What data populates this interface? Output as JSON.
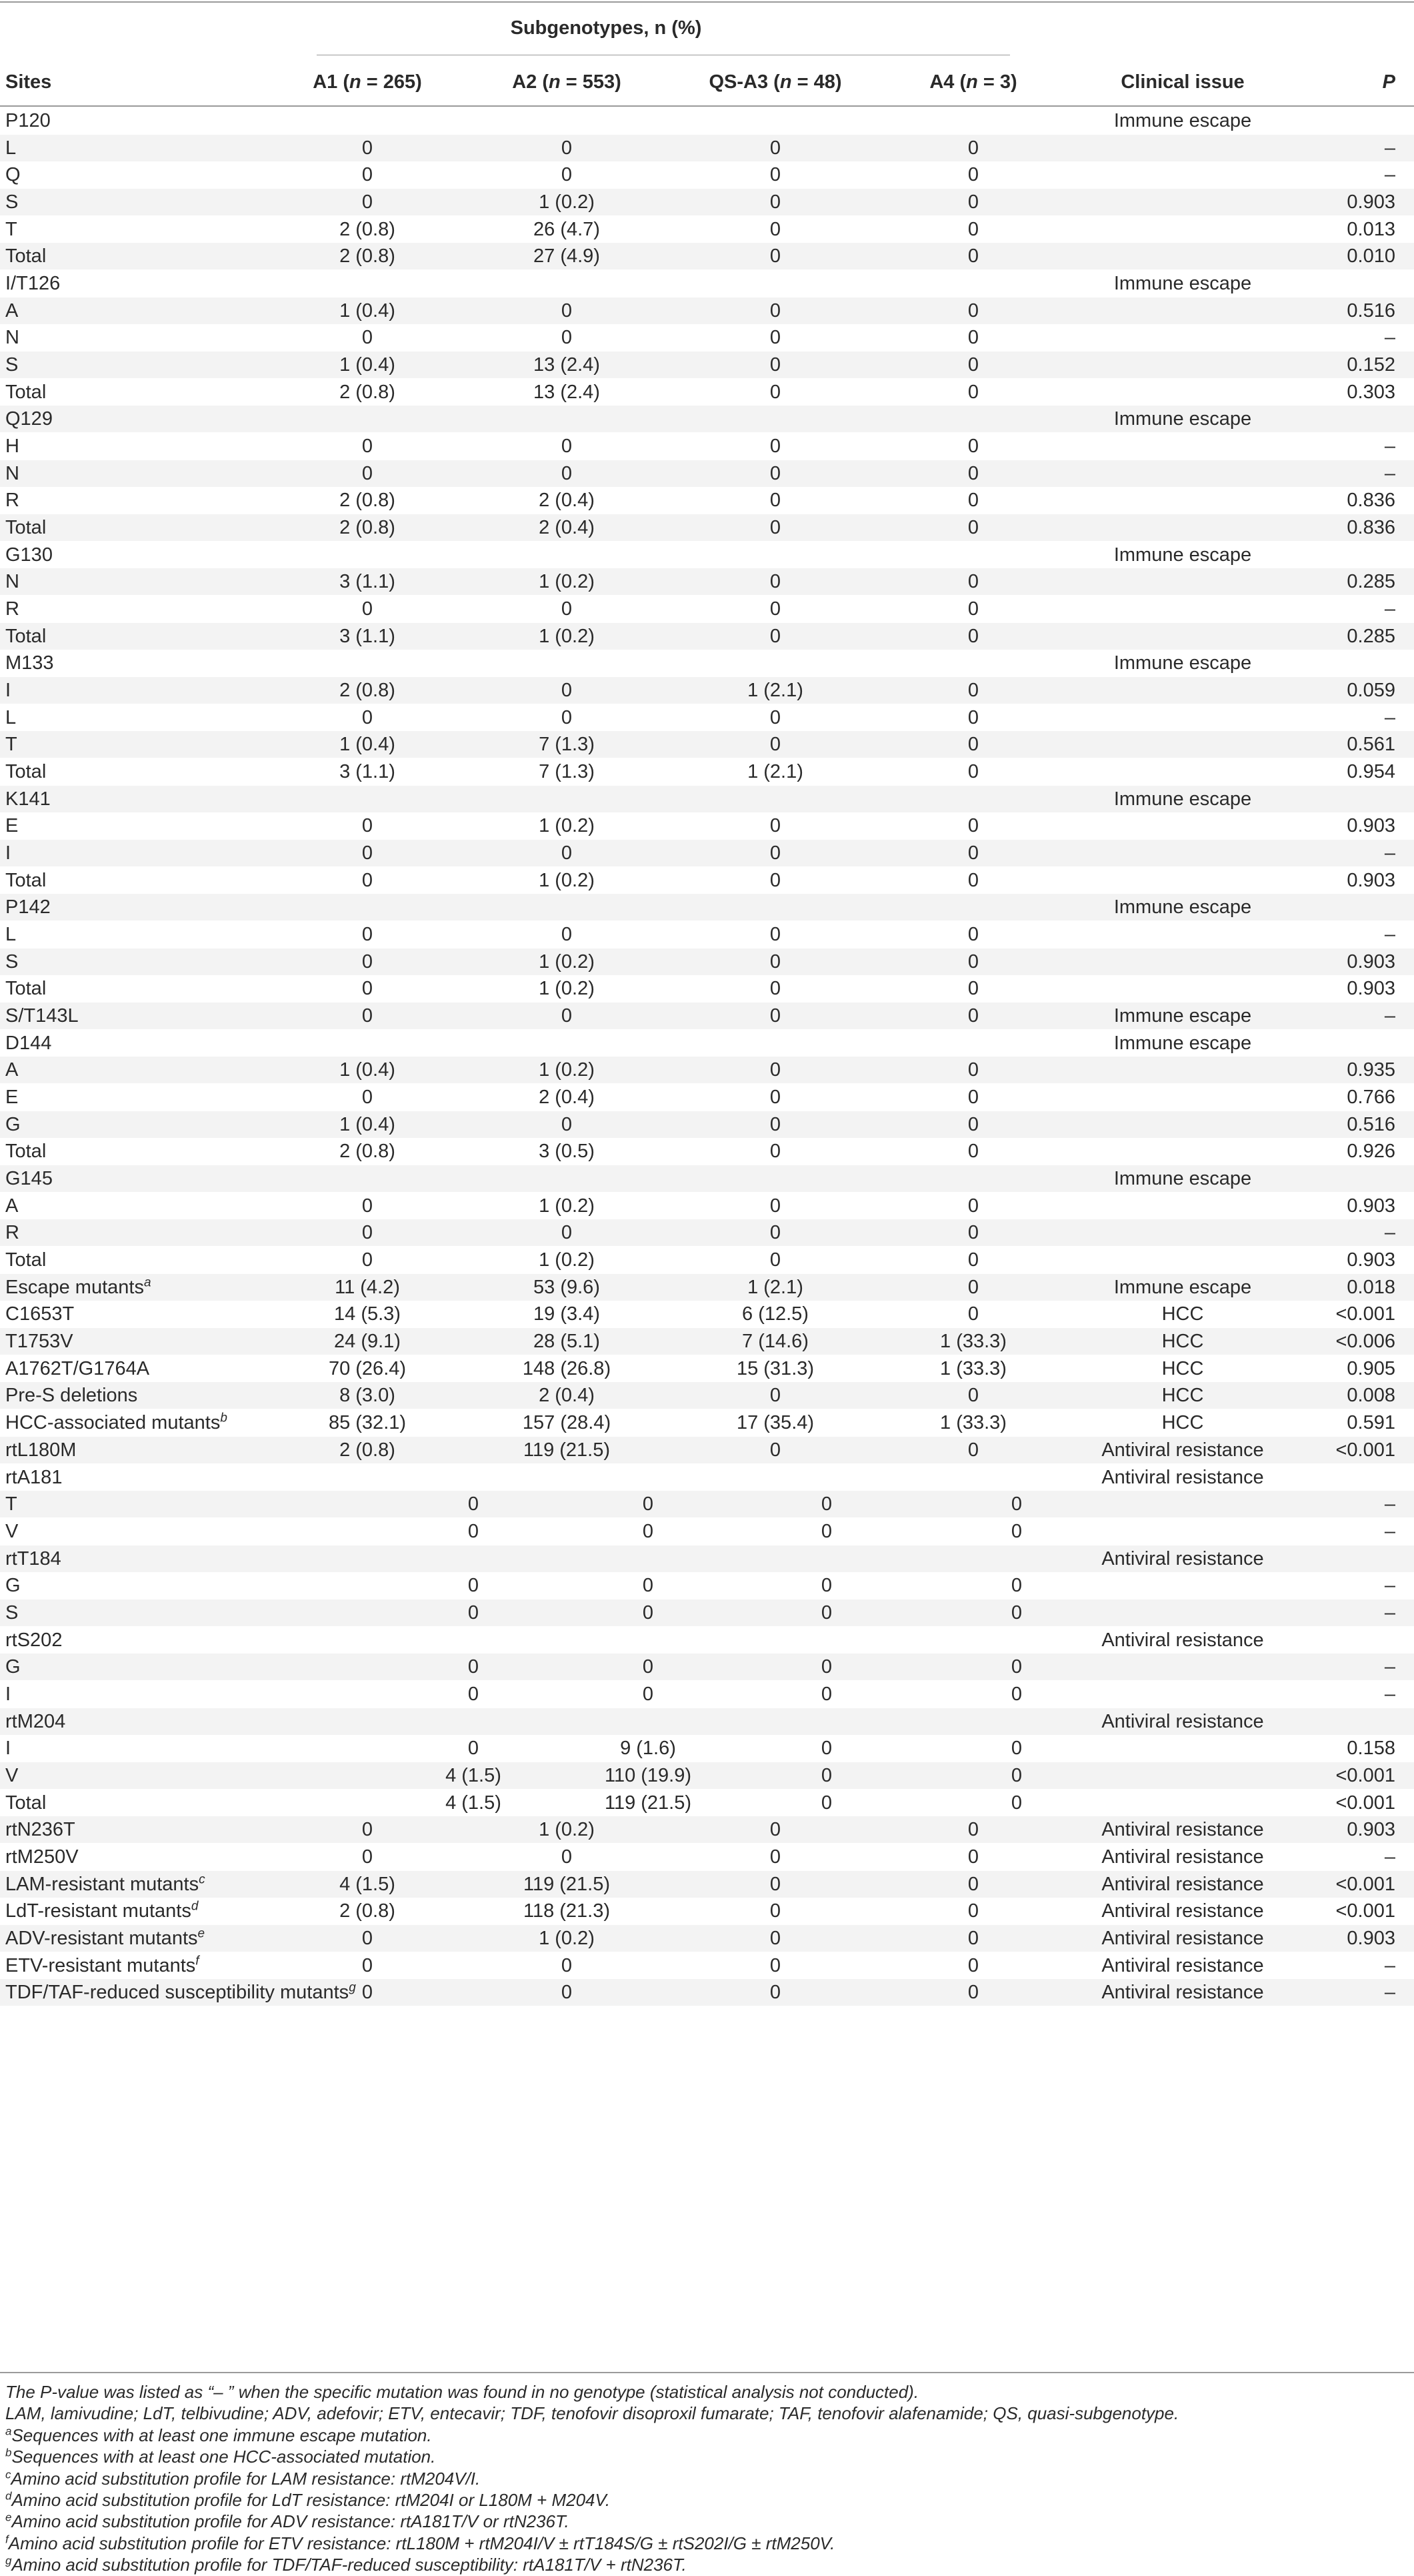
{
  "table": {
    "group_header": "Subgenotypes, n (%)",
    "columns": {
      "sites": "Sites",
      "a1_label": "A1 (",
      "a1_n": "n",
      "a1_count": " = 265)",
      "a2_label": "A2 (",
      "a2_n": "n",
      "a2_count": " = 553)",
      "qs_label": "QS-A3 (",
      "qs_n": "n",
      "qs_count": " = 48)",
      "a4_label": "A4 (",
      "a4_n": "n",
      "a4_count": " = 3)",
      "clinical": "Clinical issue",
      "p": "P"
    },
    "rows": [
      {
        "site": "P120",
        "sup": "",
        "a1": "",
        "a2": "",
        "a3": "",
        "a4": "",
        "issue": "Immune escape",
        "p": ""
      },
      {
        "site": "L",
        "sup": "",
        "a1": "0",
        "a2": "0",
        "a3": "0",
        "a4": "0",
        "issue": "",
        "p": "–"
      },
      {
        "site": "Q",
        "sup": "",
        "a1": "0",
        "a2": "0",
        "a3": "0",
        "a4": "0",
        "issue": "",
        "p": "–"
      },
      {
        "site": "S",
        "sup": "",
        "a1": "0",
        "a2": "1 (0.2)",
        "a3": "0",
        "a4": "0",
        "issue": "",
        "p": "0.903"
      },
      {
        "site": "T",
        "sup": "",
        "a1": "2 (0.8)",
        "a2": "26 (4.7)",
        "a3": "0",
        "a4": "0",
        "issue": "",
        "p": "0.013"
      },
      {
        "site": "Total",
        "sup": "",
        "a1": "2 (0.8)",
        "a2": "27 (4.9)",
        "a3": "0",
        "a4": "0",
        "issue": "",
        "p": "0.010"
      },
      {
        "site": "I/T126",
        "sup": "",
        "a1": "",
        "a2": "",
        "a3": "",
        "a4": "",
        "issue": "Immune escape",
        "p": ""
      },
      {
        "site": "A",
        "sup": "",
        "a1": "1 (0.4)",
        "a2": "0",
        "a3": "0",
        "a4": "0",
        "issue": "",
        "p": "0.516"
      },
      {
        "site": "N",
        "sup": "",
        "a1": "0",
        "a2": "0",
        "a3": "0",
        "a4": "0",
        "issue": "",
        "p": "–"
      },
      {
        "site": "S",
        "sup": "",
        "a1": "1 (0.4)",
        "a2": "13 (2.4)",
        "a3": "0",
        "a4": "0",
        "issue": "",
        "p": "0.152"
      },
      {
        "site": "Total",
        "sup": "",
        "a1": "2 (0.8)",
        "a2": "13 (2.4)",
        "a3": "0",
        "a4": "0",
        "issue": "",
        "p": "0.303"
      },
      {
        "site": "Q129",
        "sup": "",
        "a1": "",
        "a2": "",
        "a3": "",
        "a4": "",
        "issue": "Immune escape",
        "p": ""
      },
      {
        "site": "H",
        "sup": "",
        "a1": "0",
        "a2": "0",
        "a3": "0",
        "a4": "0",
        "issue": "",
        "p": "–"
      },
      {
        "site": "N",
        "sup": "",
        "a1": "0",
        "a2": "0",
        "a3": "0",
        "a4": "0",
        "issue": "",
        "p": "–"
      },
      {
        "site": "R",
        "sup": "",
        "a1": "2 (0.8)",
        "a2": "2 (0.4)",
        "a3": "0",
        "a4": "0",
        "issue": "",
        "p": "0.836"
      },
      {
        "site": "Total",
        "sup": "",
        "a1": "2 (0.8)",
        "a2": "2 (0.4)",
        "a3": "0",
        "a4": "0",
        "issue": "",
        "p": "0.836"
      },
      {
        "site": "G130",
        "sup": "",
        "a1": "",
        "a2": "",
        "a3": "",
        "a4": "",
        "issue": "Immune escape",
        "p": ""
      },
      {
        "site": "N",
        "sup": "",
        "a1": "3 (1.1)",
        "a2": "1 (0.2)",
        "a3": "0",
        "a4": "0",
        "issue": "",
        "p": "0.285"
      },
      {
        "site": "R",
        "sup": "",
        "a1": "0",
        "a2": "0",
        "a3": "0",
        "a4": "0",
        "issue": "",
        "p": "–"
      },
      {
        "site": "Total",
        "sup": "",
        "a1": "3 (1.1)",
        "a2": "1 (0.2)",
        "a3": "0",
        "a4": "0",
        "issue": "",
        "p": "0.285"
      },
      {
        "site": "M133",
        "sup": "",
        "a1": "",
        "a2": "",
        "a3": "",
        "a4": "",
        "issue": "Immune escape",
        "p": ""
      },
      {
        "site": "I",
        "sup": "",
        "a1": "2 (0.8)",
        "a2": "0",
        "a3": "1 (2.1)",
        "a4": "0",
        "issue": "",
        "p": "0.059"
      },
      {
        "site": "L",
        "sup": "",
        "a1": "0",
        "a2": "0",
        "a3": "0",
        "a4": "0",
        "issue": "",
        "p": "–"
      },
      {
        "site": "T",
        "sup": "",
        "a1": "1 (0.4)",
        "a2": "7 (1.3)",
        "a3": "0",
        "a4": "0",
        "issue": "",
        "p": "0.561"
      },
      {
        "site": "Total",
        "sup": "",
        "a1": "3 (1.1)",
        "a2": "7 (1.3)",
        "a3": "1 (2.1)",
        "a4": "0",
        "issue": "",
        "p": "0.954"
      },
      {
        "site": "K141",
        "sup": "",
        "a1": "",
        "a2": "",
        "a3": "",
        "a4": "",
        "issue": "Immune escape",
        "p": ""
      },
      {
        "site": "E",
        "sup": "",
        "a1": "0",
        "a2": "1 (0.2)",
        "a3": "0",
        "a4": "0",
        "issue": "",
        "p": "0.903"
      },
      {
        "site": "I",
        "sup": "",
        "a1": "0",
        "a2": "0",
        "a3": "0",
        "a4": "0",
        "issue": "",
        "p": "–"
      },
      {
        "site": "Total",
        "sup": "",
        "a1": "0",
        "a2": "1 (0.2)",
        "a3": "0",
        "a4": "0",
        "issue": "",
        "p": "0.903"
      },
      {
        "site": "P142",
        "sup": "",
        "a1": "",
        "a2": "",
        "a3": "",
        "a4": "",
        "issue": "Immune escape",
        "p": ""
      },
      {
        "site": "L",
        "sup": "",
        "a1": "0",
        "a2": "0",
        "a3": "0",
        "a4": "0",
        "issue": "",
        "p": "–"
      },
      {
        "site": "S",
        "sup": "",
        "a1": "0",
        "a2": "1 (0.2)",
        "a3": "0",
        "a4": "0",
        "issue": "",
        "p": "0.903"
      },
      {
        "site": "Total",
        "sup": "",
        "a1": "0",
        "a2": "1 (0.2)",
        "a3": "0",
        "a4": "0",
        "issue": "",
        "p": "0.903"
      },
      {
        "site": "S/T143L",
        "sup": "",
        "a1": "0",
        "a2": "0",
        "a3": "0",
        "a4": "0",
        "issue": "Immune escape",
        "p": "–"
      },
      {
        "site": "D144",
        "sup": "",
        "a1": "",
        "a2": "",
        "a3": "",
        "a4": "",
        "issue": "Immune escape",
        "p": ""
      },
      {
        "site": "A",
        "sup": "",
        "a1": "1 (0.4)",
        "a2": "1 (0.2)",
        "a3": "0",
        "a4": "0",
        "issue": "",
        "p": "0.935"
      },
      {
        "site": "E",
        "sup": "",
        "a1": "0",
        "a2": "2 (0.4)",
        "a3": "0",
        "a4": "0",
        "issue": "",
        "p": "0.766"
      },
      {
        "site": "G",
        "sup": "",
        "a1": "1 (0.4)",
        "a2": "0",
        "a3": "0",
        "a4": "0",
        "issue": "",
        "p": "0.516"
      },
      {
        "site": "Total",
        "sup": "",
        "a1": "2 (0.8)",
        "a2": "3 (0.5)",
        "a3": "0",
        "a4": "0",
        "issue": "",
        "p": "0.926"
      },
      {
        "site": "G145",
        "sup": "",
        "a1": "",
        "a2": "",
        "a3": "",
        "a4": "",
        "issue": "Immune escape",
        "p": ""
      },
      {
        "site": "A",
        "sup": "",
        "a1": "0",
        "a2": "1 (0.2)",
        "a3": "0",
        "a4": "0",
        "issue": "",
        "p": "0.903"
      },
      {
        "site": "R",
        "sup": "",
        "a1": "0",
        "a2": "0",
        "a3": "0",
        "a4": "0",
        "issue": "",
        "p": "–"
      },
      {
        "site": "Total",
        "sup": "",
        "a1": "0",
        "a2": "1 (0.2)",
        "a3": "0",
        "a4": "0",
        "issue": "",
        "p": "0.903"
      },
      {
        "site": "Escape mutants",
        "sup": "a",
        "a1": "11 (4.2)",
        "a2": "53 (9.6)",
        "a3": "1 (2.1)",
        "a4": "0",
        "issue": "Immune escape",
        "p": "0.018"
      },
      {
        "site": "C1653T",
        "sup": "",
        "a1": "14 (5.3)",
        "a2": "19 (3.4)",
        "a3": "6 (12.5)",
        "a4": "0",
        "issue": "HCC",
        "p": "<0.001"
      },
      {
        "site": "T1753V",
        "sup": "",
        "a1": "24 (9.1)",
        "a2": "28 (5.1)",
        "a3": "7 (14.6)",
        "a4": "1 (33.3)",
        "issue": "HCC",
        "p": "<0.006"
      },
      {
        "site": "A1762T/G1764A",
        "sup": "",
        "a1": "70 (26.4)",
        "a2": "148 (26.8)",
        "a3": "15 (31.3)",
        "a4": "1 (33.3)",
        "issue": "HCC",
        "p": "0.905"
      },
      {
        "site": "Pre-S deletions",
        "sup": "",
        "a1": "8 (3.0)",
        "a2": "2 (0.4)",
        "a3": "0",
        "a4": "0",
        "issue": "HCC",
        "p": "0.008"
      },
      {
        "site": "HCC-associated mutants",
        "sup": "b",
        "a1": "85 (32.1)",
        "a2": "157 (28.4)",
        "a3": "17 (35.4)",
        "a4": "1 (33.3)",
        "issue": "HCC",
        "p": "0.591"
      },
      {
        "site": "rtL180M",
        "sup": "",
        "a1": "2 (0.8)",
        "a2": "119 (21.5)",
        "a3": "0",
        "a4": "0",
        "issue": "Antiviral resistance",
        "p": "<0.001"
      },
      {
        "site": "rtA181",
        "sup": "",
        "a1": "",
        "a2": "",
        "a3": "",
        "a4": "",
        "issue": "Antiviral resistance",
        "p": ""
      },
      {
        "site": "T",
        "sup": "",
        "a1": "0",
        "a2": "0",
        "a3": "0",
        "a4": "0",
        "issue": "",
        "p": "–"
      },
      {
        "site": "V",
        "sup": "",
        "a1": "0",
        "a2": "0",
        "a3": "0",
        "a4": "0",
        "issue": "",
        "p": "–"
      },
      {
        "site": "rtT184",
        "sup": "",
        "a1": "",
        "a2": "",
        "a3": "",
        "a4": "",
        "issue": "Antiviral resistance",
        "p": ""
      },
      {
        "site": "G",
        "sup": "",
        "a1": "0",
        "a2": "0",
        "a3": "0",
        "a4": "0",
        "issue": "",
        "p": "–"
      },
      {
        "site": "S",
        "sup": "",
        "a1": "0",
        "a2": "0",
        "a3": "0",
        "a4": "0",
        "issue": "",
        "p": "–"
      },
      {
        "site": "rtS202",
        "sup": "",
        "a1": "",
        "a2": "",
        "a3": "",
        "a4": "",
        "issue": "Antiviral resistance",
        "p": ""
      },
      {
        "site": "G",
        "sup": "",
        "a1": "0",
        "a2": "0",
        "a3": "0",
        "a4": "0",
        "issue": "",
        "p": "–"
      },
      {
        "site": "I",
        "sup": "",
        "a1": "0",
        "a2": "0",
        "a3": "0",
        "a4": "0",
        "issue": "",
        "p": "–"
      },
      {
        "site": "rtM204",
        "sup": "",
        "a1": "",
        "a2": "",
        "a3": "",
        "a4": "",
        "issue": "Antiviral resistance",
        "p": ""
      },
      {
        "site": "I",
        "sup": "",
        "a1": "0",
        "a2": "9 (1.6)",
        "a3": "0",
        "a4": "0",
        "issue": "",
        "p": "0.158"
      },
      {
        "site": "V",
        "sup": "",
        "a1": "4 (1.5)",
        "a2": "110 (19.9)",
        "a3": "0",
        "a4": "0",
        "issue": "",
        "p": "<0.001"
      },
      {
        "site": "Total",
        "sup": "",
        "a1": "4 (1.5)",
        "a2": "119 (21.5)",
        "a3": "0",
        "a4": "0",
        "issue": "",
        "p": "<0.001"
      },
      {
        "site": "rtN236T",
        "sup": "",
        "a1": "0",
        "a2": "1 (0.2)",
        "a3": "0",
        "a4": "0",
        "issue": "Antiviral resistance",
        "p": "0.903"
      },
      {
        "site": "rtM250V",
        "sup": "",
        "a1": "0",
        "a2": "0",
        "a3": "0",
        "a4": "0",
        "issue": "Antiviral resistance",
        "p": "–"
      },
      {
        "site": "LAM-resistant mutants",
        "sup": "c",
        "a1": "4 (1.5)",
        "a2": "119 (21.5)",
        "a3": "0",
        "a4": "0",
        "issue": "Antiviral resistance",
        "p": "<0.001"
      },
      {
        "site": "LdT-resistant mutants",
        "sup": "d",
        "a1": "2 (0.8)",
        "a2": "118 (21.3)",
        "a3": "0",
        "a4": "0",
        "issue": "Antiviral resistance",
        "p": "<0.001"
      },
      {
        "site": "ADV-resistant mutants",
        "sup": "e",
        "a1": "0",
        "a2": "1 (0.2)",
        "a3": "0",
        "a4": "0",
        "issue": "Antiviral resistance",
        "p": "0.903"
      },
      {
        "site": "ETV-resistant mutants",
        "sup": "f",
        "a1": "0",
        "a2": "0",
        "a3": "0",
        "a4": "0",
        "issue": "Antiviral resistance",
        "p": "–"
      },
      {
        "site": "TDF/TAF-reduced susceptibility mutants",
        "sup": "g",
        "a1": "0",
        "a2": "0",
        "a3": "0",
        "a4": "0",
        "issue": "Antiviral resistance",
        "p": "–"
      }
    ],
    "footnotes": [
      {
        "sup": "",
        "text": "The P-value was listed as “– ” when the specific mutation was found in no genotype (statistical analysis not conducted)."
      },
      {
        "sup": "",
        "text": "LAM, lamivudine; LdT, telbivudine; ADV, adefovir; ETV, entecavir; TDF, tenofovir disoproxil fumarate; TAF, tenofovir alafenamide; QS, quasi-subgenotype."
      },
      {
        "sup": "a",
        "text": "Sequences with at least one immune escape mutation."
      },
      {
        "sup": "b",
        "text": "Sequences with at least one HCC-associated mutation."
      },
      {
        "sup": "c",
        "text": "Amino acid substitution profile for LAM resistance: rtM204V/I."
      },
      {
        "sup": "d",
        "text": "Amino acid substitution profile for LdT resistance: rtM204I or L180M + M204V."
      },
      {
        "sup": "e",
        "text": "Amino acid substitution profile for ADV resistance: rtA181T/V or rtN236T."
      },
      {
        "sup": "f",
        "text": "Amino acid substitution profile for ETV resistance: rtL180M + rtM204I/V ± rtT184S/G ± rtS202I/G ± rtM250V."
      },
      {
        "sup": "g",
        "text": "Amino acid substitution profile for TDF/TAF-reduced susceptibility: rtA181T/V + rtN236T."
      }
    ]
  }
}
